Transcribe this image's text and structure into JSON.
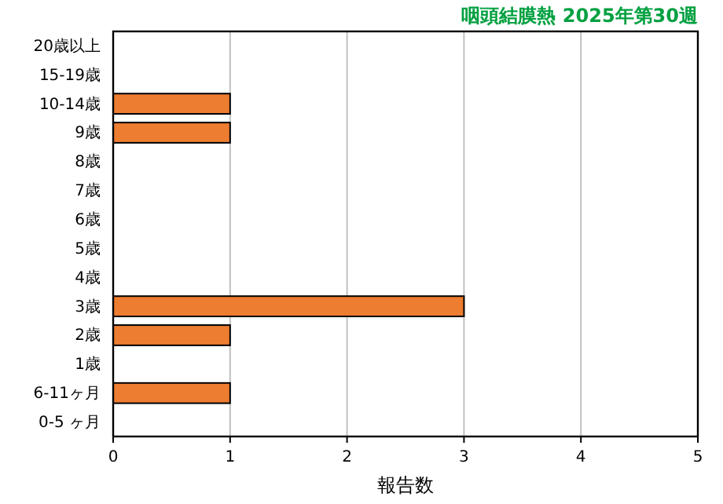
{
  "chart_data": {
    "type": "bar",
    "orientation": "horizontal",
    "title": "咽頭結膜熱 2025年第30週",
    "xlabel": "報告数",
    "categories": [
      "20歳以上",
      "15-19歳",
      "10-14歳",
      "9歳",
      "8歳",
      "7歳",
      "6歳",
      "5歳",
      "4歳",
      "3歳",
      "2歳",
      "1歳",
      "6-11ヶ月",
      "0-5 ヶ月"
    ],
    "values": [
      0,
      0,
      1,
      1,
      0,
      0,
      0,
      0,
      0,
      3,
      1,
      0,
      1,
      0
    ],
    "color": "#ed7d31",
    "xlim": [
      0,
      5
    ],
    "xticks": [
      0,
      1,
      2,
      3,
      4,
      5
    ],
    "grid": "x"
  }
}
